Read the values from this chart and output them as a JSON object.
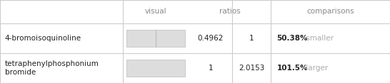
{
  "rows": [
    {
      "name": "4-bromoisoquinoline",
      "ratio1": "0.4962",
      "ratio2": "1",
      "comparison_bold": "50.38%",
      "comparison_text": " smaller",
      "bar_ratio": 0.4962
    },
    {
      "name": "tetraphenylphosphonium\nbromide",
      "ratio1": "1",
      "ratio2": "2.0153",
      "comparison_bold": "101.5%",
      "comparison_text": " larger",
      "bar_ratio": 1.0
    }
  ],
  "col_headers": [
    "visual",
    "ratios",
    "comparisons"
  ],
  "header_color": "#888888",
  "name_color": "#222222",
  "bold_color": "#222222",
  "comparison_color": "#aaaaaa",
  "bar_fill": "#dddddd",
  "bar_edge": "#bbbbbb",
  "bg_color": "#ffffff",
  "grid_color": "#cccccc"
}
